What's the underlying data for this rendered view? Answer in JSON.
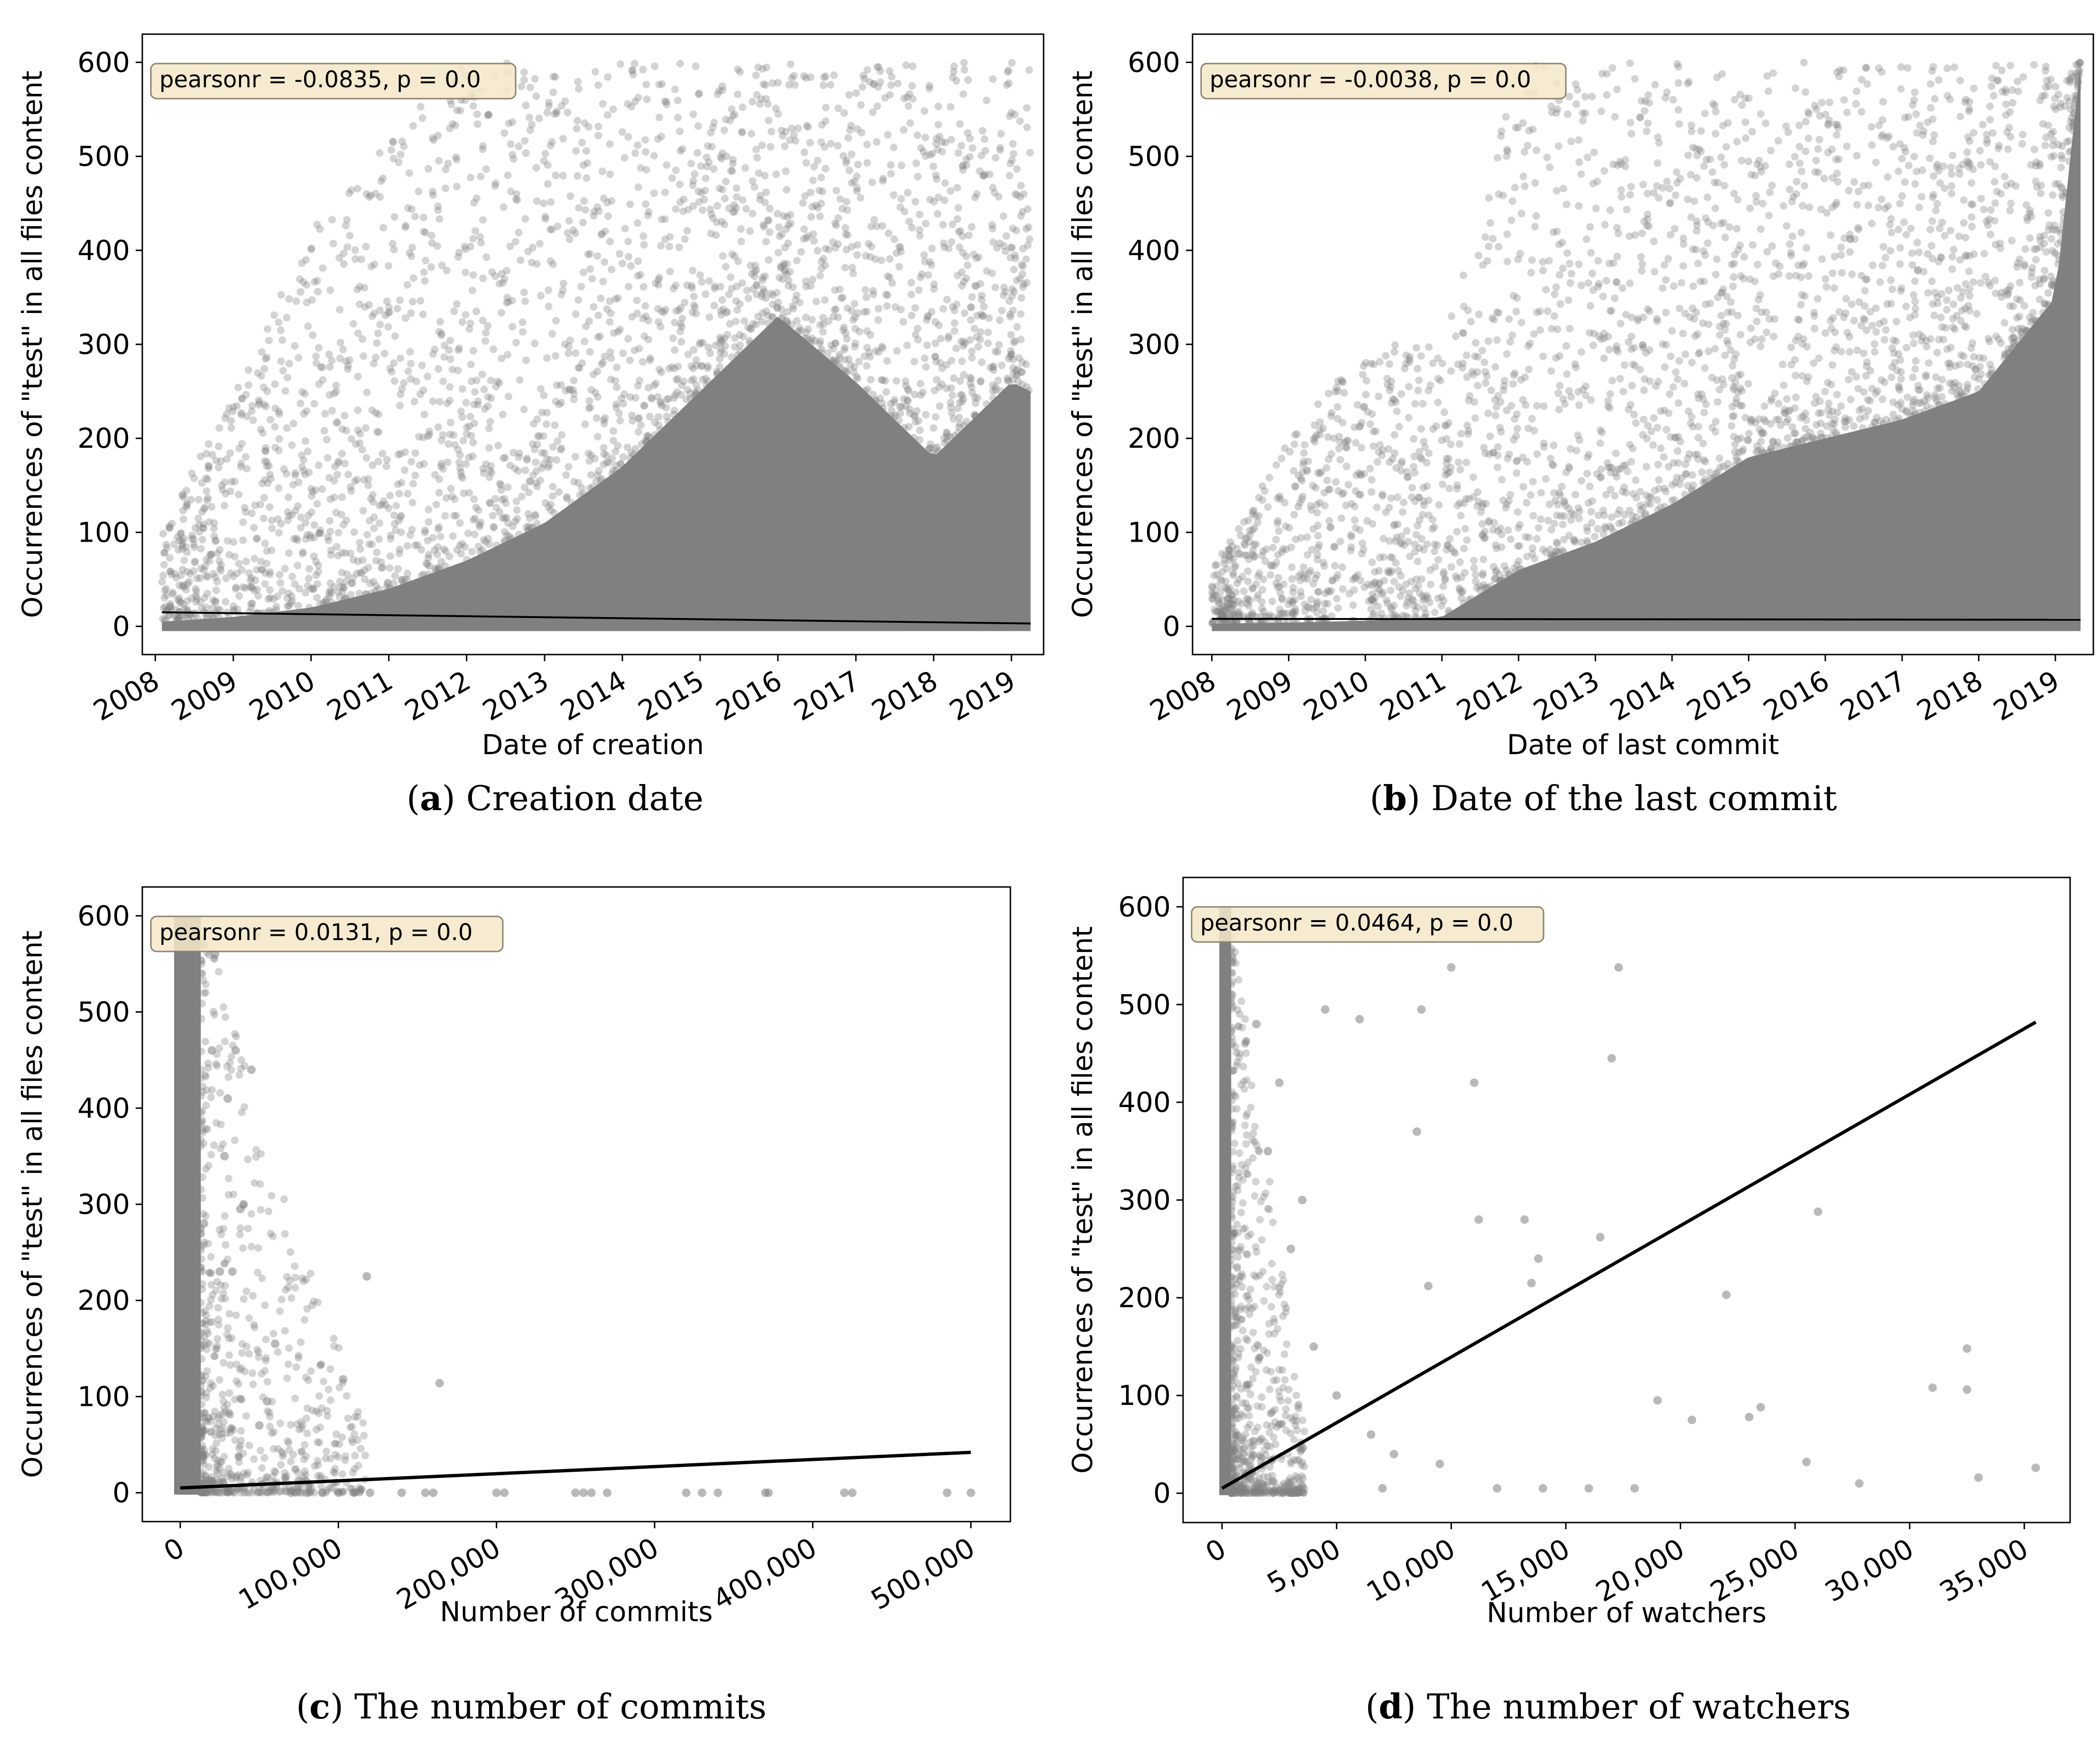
{
  "colors": {
    "points": "#808080",
    "fit_line": "#000000",
    "annotation_fill": "#f5e6c8",
    "annotation_stroke": "#8a8370"
  },
  "chart_data": [
    {
      "type": "scatter",
      "panel_id": "a",
      "caption_letter": "a",
      "caption_text": "Creation date",
      "xlabel": "Date of creation",
      "ylabel": "Occurrences of \"test\" in all files content",
      "annotation": "pearsonr = -0.0835, p = 0.0",
      "x_axis_type": "date",
      "xlim": [
        "2007-11-01",
        "2019-06-01"
      ],
      "ylim": [
        -30,
        630
      ],
      "xticks": [
        "2008",
        "2009",
        "2010",
        "2011",
        "2012",
        "2013",
        "2014",
        "2015",
        "2016",
        "2017",
        "2018",
        "2019"
      ],
      "yticks": [
        0,
        100,
        200,
        300,
        400,
        500,
        600
      ],
      "fit_line": [
        [
          "2008-02-01",
          15
        ],
        [
          "2019-04-01",
          3
        ]
      ],
      "density_profile": {
        "x": [
          "2008-02-01",
          "2009-01-01",
          "2010-01-01",
          "2011-01-01",
          "2012-01-01",
          "2013-01-01",
          "2014-01-01",
          "2015-01-01",
          "2016-01-01",
          "2017-01-01",
          "2018-01-01",
          "2019-01-01",
          "2019-04-01"
        ],
        "dense_upper": [
          5,
          10,
          20,
          40,
          70,
          110,
          170,
          250,
          330,
          260,
          180,
          260,
          250
        ],
        "sparse_upper": [
          100,
          250,
          420,
          520,
          600,
          600,
          600,
          600,
          600,
          600,
          600,
          600,
          600
        ]
      },
      "grid": false
    },
    {
      "type": "scatter",
      "panel_id": "b",
      "caption_letter": "b",
      "caption_text": "Date of the last commit",
      "xlabel": "Date of last commit",
      "ylabel": "Occurrences of \"test\" in all files content",
      "annotation": "pearsonr = -0.0038, p = 0.0",
      "x_axis_type": "date",
      "xlim": [
        "2007-10-01",
        "2019-07-01"
      ],
      "ylim": [
        -30,
        630
      ],
      "xticks": [
        "2008",
        "2009",
        "2010",
        "2011",
        "2012",
        "2013",
        "2014",
        "2015",
        "2016",
        "2017",
        "2018",
        "2019"
      ],
      "yticks": [
        0,
        100,
        200,
        300,
        400,
        500,
        600
      ],
      "fit_line": [
        [
          "2008-01-01",
          8
        ],
        [
          "2019-05-01",
          7
        ]
      ],
      "density_profile": {
        "x": [
          "2008-01-01",
          "2009-01-01",
          "2010-01-01",
          "2011-01-01",
          "2012-01-01",
          "2013-01-01",
          "2014-01-01",
          "2015-01-01",
          "2016-01-01",
          "2017-01-01",
          "2018-01-01",
          "2019-01-01",
          "2019-05-01"
        ],
        "dense_upper": [
          3,
          4,
          6,
          10,
          60,
          90,
          130,
          180,
          200,
          220,
          250,
          350,
          600
        ],
        "sparse_upper": [
          60,
          200,
          300,
          300,
          600,
          600,
          600,
          600,
          600,
          600,
          600,
          600,
          600
        ]
      },
      "grid": false
    },
    {
      "type": "scatter",
      "panel_id": "c",
      "caption_letter": "c",
      "caption_text": "The number of commits",
      "xlabel": "Number of commits",
      "ylabel": "Occurrences of \"test\" in all files content",
      "annotation": "pearsonr = 0.0131, p = 0.0",
      "x_axis_type": "linear",
      "xlim": [
        -24000,
        525000
      ],
      "ylim": [
        -30,
        630
      ],
      "xticks": [
        0,
        100000,
        200000,
        300000,
        400000,
        500000
      ],
      "xtick_labels": [
        "0",
        "100,000",
        "200,000",
        "300,000",
        "400,000",
        "500,000"
      ],
      "yticks": [
        0,
        100,
        200,
        300,
        400,
        500,
        600
      ],
      "fit_line": [
        [
          0,
          5
        ],
        [
          500000,
          42
        ]
      ],
      "dense_band": {
        "x_max": 13000,
        "y_max": 600
      },
      "points": [
        [
          20000,
          460
        ],
        [
          35000,
          460
        ],
        [
          30000,
          410
        ],
        [
          40000,
          300
        ],
        [
          38000,
          295
        ],
        [
          45000,
          440
        ],
        [
          28000,
          350
        ],
        [
          33000,
          230
        ],
        [
          25000,
          230
        ],
        [
          15000,
          280
        ],
        [
          22000,
          560
        ],
        [
          48000,
          580
        ],
        [
          60000,
          155
        ],
        [
          55000,
          95
        ],
        [
          50000,
          70
        ],
        [
          118000,
          225
        ],
        [
          103000,
          118
        ],
        [
          164000,
          114
        ],
        [
          70000,
          0
        ],
        [
          80000,
          0
        ],
        [
          90000,
          0
        ],
        [
          100000,
          0
        ],
        [
          110000,
          0
        ],
        [
          120000,
          0
        ],
        [
          140000,
          0
        ],
        [
          155000,
          0
        ],
        [
          160000,
          0
        ],
        [
          200000,
          0
        ],
        [
          205000,
          0
        ],
        [
          250000,
          0
        ],
        [
          255000,
          0
        ],
        [
          260000,
          0
        ],
        [
          270000,
          0
        ],
        [
          320000,
          0
        ],
        [
          330000,
          0
        ],
        [
          340000,
          0
        ],
        [
          370000,
          0
        ],
        [
          372000,
          0
        ],
        [
          420000,
          0
        ],
        [
          425000,
          0
        ],
        [
          485000,
          0
        ],
        [
          500000,
          0
        ]
      ],
      "grid": false
    },
    {
      "type": "scatter",
      "panel_id": "d",
      "caption_letter": "d",
      "caption_text": "The number of watchers",
      "xlabel": "Number of watchers",
      "ylabel": "Occurrences of \"test\" in all files content",
      "annotation": "pearsonr = 0.0464, p = 0.0",
      "x_axis_type": "linear",
      "xlim": [
        -1700,
        37000
      ],
      "ylim": [
        -30,
        630
      ],
      "xticks": [
        0,
        5000,
        10000,
        15000,
        20000,
        25000,
        30000,
        35000
      ],
      "xtick_labels": [
        "0",
        "5,000",
        "10,000",
        "15,000",
        "20,000",
        "25,000",
        "30,000",
        "35,000"
      ],
      "yticks": [
        0,
        100,
        200,
        300,
        400,
        500,
        600
      ],
      "fit_line": [
        [
          0,
          5
        ],
        [
          35500,
          482
        ]
      ],
      "dense_band": {
        "x_max": 400,
        "y_max": 600
      },
      "points": [
        [
          10000,
          538
        ],
        [
          17300,
          538
        ],
        [
          11000,
          420
        ],
        [
          8500,
          370
        ],
        [
          17000,
          445
        ],
        [
          6000,
          485
        ],
        [
          4500,
          495
        ],
        [
          8700,
          495
        ],
        [
          26000,
          288
        ],
        [
          13200,
          280
        ],
        [
          11200,
          280
        ],
        [
          16500,
          262
        ],
        [
          13800,
          240
        ],
        [
          22000,
          203
        ],
        [
          13500,
          215
        ],
        [
          9000,
          212
        ],
        [
          32500,
          148
        ],
        [
          31000,
          108
        ],
        [
          32500,
          106
        ],
        [
          23000,
          78
        ],
        [
          23500,
          88
        ],
        [
          20500,
          75
        ],
        [
          19000,
          95
        ],
        [
          25500,
          32
        ],
        [
          27800,
          10
        ],
        [
          33000,
          16
        ],
        [
          35500,
          26
        ],
        [
          18000,
          5
        ],
        [
          16000,
          5
        ],
        [
          14000,
          5
        ],
        [
          12000,
          5
        ],
        [
          7000,
          5
        ],
        [
          2000,
          350
        ],
        [
          3000,
          250
        ],
        [
          4000,
          150
        ],
        [
          5000,
          100
        ],
        [
          6500,
          60
        ],
        [
          1500,
          480
        ],
        [
          2500,
          420
        ],
        [
          3500,
          300
        ],
        [
          7500,
          40
        ],
        [
          9500,
          30
        ]
      ],
      "grid": false
    }
  ]
}
